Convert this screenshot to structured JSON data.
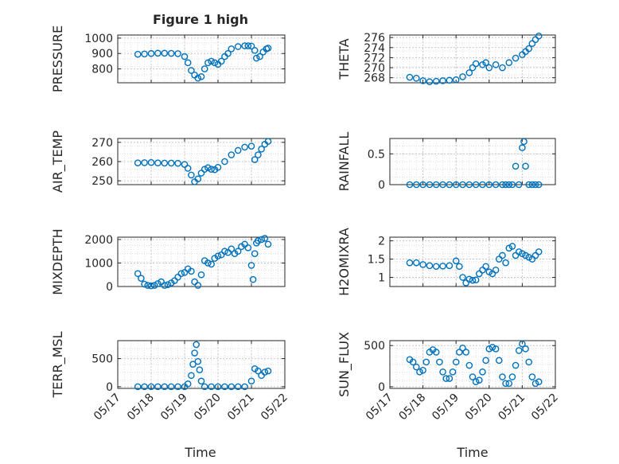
{
  "figure": {
    "title": "Figure 1 high",
    "xlabel_left": "Time",
    "xlabel_right": "Time",
    "marker_color": "#0072BD"
  },
  "chart_data": [
    {
      "type": "scatter",
      "ylabel": "PRESSURE",
      "yticks": [
        "800",
        "900",
        "1000"
      ],
      "ylim": [
        710,
        1020
      ],
      "xlim": [
        17,
        22
      ],
      "x": [
        17.6,
        17.8,
        18.0,
        18.2,
        18.4,
        18.6,
        18.8,
        19.0,
        19.1,
        19.2,
        19.3,
        19.4,
        19.5,
        19.6,
        19.7,
        19.8,
        19.9,
        20.0,
        20.1,
        20.2,
        20.3,
        20.4,
        20.6,
        20.8,
        20.9,
        21.0,
        21.1,
        21.15,
        21.25,
        21.35,
        21.45,
        21.5
      ],
      "values": [
        895,
        897,
        900,
        902,
        902,
        901,
        899,
        880,
        840,
        790,
        760,
        740,
        750,
        800,
        840,
        850,
        840,
        830,
        850,
        880,
        900,
        930,
        945,
        950,
        950,
        948,
        920,
        870,
        880,
        910,
        930,
        935
      ]
    },
    {
      "type": "scatter",
      "ylabel": "THETA",
      "yticks": [
        "268",
        "270",
        "272",
        "274",
        "276"
      ],
      "ylim": [
        267,
        276.5
      ],
      "xlim": [
        17,
        22
      ],
      "x": [
        17.6,
        17.8,
        18.0,
        18.2,
        18.4,
        18.6,
        18.8,
        19.0,
        19.2,
        19.4,
        19.5,
        19.6,
        19.8,
        19.9,
        20.0,
        20.2,
        20.4,
        20.6,
        20.8,
        21.0,
        21.1,
        21.2,
        21.3,
        21.4,
        21.5
      ],
      "values": [
        268.1,
        267.9,
        267.4,
        267.2,
        267.3,
        267.4,
        267.5,
        267.6,
        268.2,
        269.0,
        270.0,
        270.8,
        270.6,
        271.0,
        270.0,
        270.6,
        270.0,
        271.0,
        271.9,
        272.6,
        273.2,
        273.8,
        274.8,
        275.6,
        276.3
      ]
    },
    {
      "type": "scatter",
      "ylabel": "AIR_TEMP",
      "yticks": [
        "250",
        "260",
        "270"
      ],
      "ylim": [
        248,
        272
      ],
      "xlim": [
        17,
        22
      ],
      "x": [
        17.6,
        17.8,
        18.0,
        18.2,
        18.4,
        18.6,
        18.8,
        19.0,
        19.1,
        19.2,
        19.3,
        19.4,
        19.5,
        19.6,
        19.7,
        19.8,
        19.9,
        20.0,
        20.2,
        20.4,
        20.6,
        20.8,
        21.0,
        21.1,
        21.2,
        21.3,
        21.4,
        21.5
      ],
      "values": [
        259.3,
        259.4,
        259.5,
        259.3,
        259.2,
        259.2,
        259.1,
        258.5,
        256.5,
        253.0,
        249.5,
        251.0,
        254.0,
        256.0,
        256.8,
        256.0,
        255.8,
        257.0,
        260.0,
        263.5,
        265.8,
        267.5,
        268.0,
        261.0,
        263.5,
        266.5,
        269.0,
        270.5
      ]
    },
    {
      "type": "scatter",
      "ylabel": "RAINFALL",
      "yticks": [
        "0",
        "0.5"
      ],
      "ylim": [
        0,
        0.75
      ],
      "xlim": [
        17,
        22
      ],
      "x": [
        17.6,
        17.8,
        18.0,
        18.2,
        18.4,
        18.6,
        18.8,
        19.0,
        19.2,
        19.4,
        19.6,
        19.8,
        20.0,
        20.2,
        20.4,
        20.5,
        20.6,
        20.7,
        20.8,
        20.9,
        21.0,
        21.05,
        21.1,
        21.2,
        21.3,
        21.4,
        21.5
      ],
      "values": [
        0,
        0,
        0,
        0,
        0,
        0,
        0,
        0,
        0,
        0,
        0,
        0,
        0,
        0,
        0,
        0,
        0,
        0,
        0.3,
        0,
        0.6,
        0.7,
        0.3,
        0,
        0,
        0,
        0
      ]
    },
    {
      "type": "scatter",
      "ylabel": "MIXDEPTH",
      "yticks": [
        "0",
        "1000",
        "2000"
      ],
      "ylim": [
        0,
        2100
      ],
      "xlim": [
        17,
        22
      ],
      "x": [
        17.6,
        17.7,
        17.8,
        17.9,
        18.0,
        18.1,
        18.2,
        18.3,
        18.4,
        18.5,
        18.6,
        18.7,
        18.8,
        18.9,
        19.0,
        19.1,
        19.2,
        19.3,
        19.4,
        19.5,
        19.6,
        19.7,
        19.8,
        19.9,
        20.0,
        20.1,
        20.2,
        20.3,
        20.4,
        20.5,
        20.6,
        20.7,
        20.8,
        20.9,
        21.0,
        21.05,
        21.1,
        21.15,
        21.2,
        21.3,
        21.4,
        21.5
      ],
      "values": [
        550,
        350,
        100,
        50,
        30,
        50,
        120,
        200,
        50,
        80,
        150,
        250,
        400,
        550,
        600,
        750,
        650,
        200,
        50,
        500,
        1100,
        1000,
        950,
        1200,
        1300,
        1350,
        1500,
        1450,
        1600,
        1400,
        1500,
        1700,
        1800,
        1650,
        900,
        300,
        1400,
        1850,
        1950,
        2000,
        2050,
        1800
      ]
    },
    {
      "type": "scatter",
      "ylabel": "H2OMIXRA",
      "yticks": [
        "1",
        "1.5",
        "2"
      ],
      "ylim": [
        0.75,
        2.1
      ],
      "xlim": [
        17,
        22
      ],
      "x": [
        17.6,
        17.8,
        18.0,
        18.2,
        18.4,
        18.6,
        18.8,
        19.0,
        19.1,
        19.2,
        19.3,
        19.4,
        19.5,
        19.6,
        19.7,
        19.8,
        19.9,
        20.0,
        20.1,
        20.2,
        20.3,
        20.4,
        20.5,
        20.6,
        20.7,
        20.8,
        20.9,
        21.0,
        21.1,
        21.2,
        21.3,
        21.4,
        21.5
      ],
      "values": [
        1.4,
        1.4,
        1.35,
        1.32,
        1.3,
        1.31,
        1.32,
        1.45,
        1.3,
        1.0,
        0.85,
        0.95,
        0.92,
        0.93,
        1.1,
        1.2,
        1.3,
        1.15,
        1.1,
        1.2,
        1.5,
        1.6,
        1.4,
        1.8,
        1.85,
        1.6,
        1.7,
        1.65,
        1.6,
        1.55,
        1.5,
        1.6,
        1.7
      ]
    },
    {
      "type": "scatter",
      "ylabel": "TERR_MSL",
      "yticks": [
        "0",
        "500"
      ],
      "ylim": [
        -30,
        820
      ],
      "xlim": [
        17,
        22
      ],
      "x": [
        17.6,
        17.8,
        18.0,
        18.2,
        18.4,
        18.6,
        18.8,
        19.0,
        19.1,
        19.2,
        19.25,
        19.3,
        19.35,
        19.4,
        19.45,
        19.5,
        19.6,
        19.8,
        20.0,
        20.2,
        20.4,
        20.6,
        20.8,
        21.0,
        21.1,
        21.2,
        21.3,
        21.4,
        21.5
      ],
      "values": [
        0,
        0,
        0,
        0,
        0,
        0,
        0,
        0,
        50,
        200,
        400,
        600,
        750,
        450,
        300,
        100,
        0,
        0,
        0,
        0,
        0,
        0,
        0,
        100,
        320,
        280,
        200,
        260,
        280
      ]
    },
    {
      "type": "scatter",
      "ylabel": "SUN_FLUX",
      "yticks": [
        "0",
        "500"
      ],
      "ylim": [
        -20,
        560
      ],
      "xlim": [
        17,
        22
      ],
      "x": [
        17.6,
        17.7,
        17.8,
        17.9,
        18.0,
        18.1,
        18.2,
        18.3,
        18.4,
        18.5,
        18.6,
        18.7,
        18.8,
        18.9,
        19.0,
        19.1,
        19.2,
        19.3,
        19.4,
        19.5,
        19.6,
        19.7,
        19.8,
        19.9,
        20.0,
        20.1,
        20.2,
        20.3,
        20.4,
        20.5,
        20.6,
        20.7,
        20.8,
        20.9,
        21.0,
        21.1,
        21.2,
        21.3,
        21.4,
        21.5
      ],
      "values": [
        330,
        300,
        240,
        180,
        200,
        300,
        420,
        450,
        420,
        300,
        180,
        100,
        100,
        180,
        300,
        420,
        470,
        420,
        260,
        120,
        60,
        80,
        180,
        320,
        460,
        480,
        460,
        320,
        120,
        40,
        40,
        120,
        260,
        440,
        520,
        460,
        300,
        120,
        40,
        60
      ]
    }
  ],
  "shared_x_ticks": [
    "05/17",
    "05/18",
    "05/19",
    "05/20",
    "05/21",
    "05/22"
  ]
}
